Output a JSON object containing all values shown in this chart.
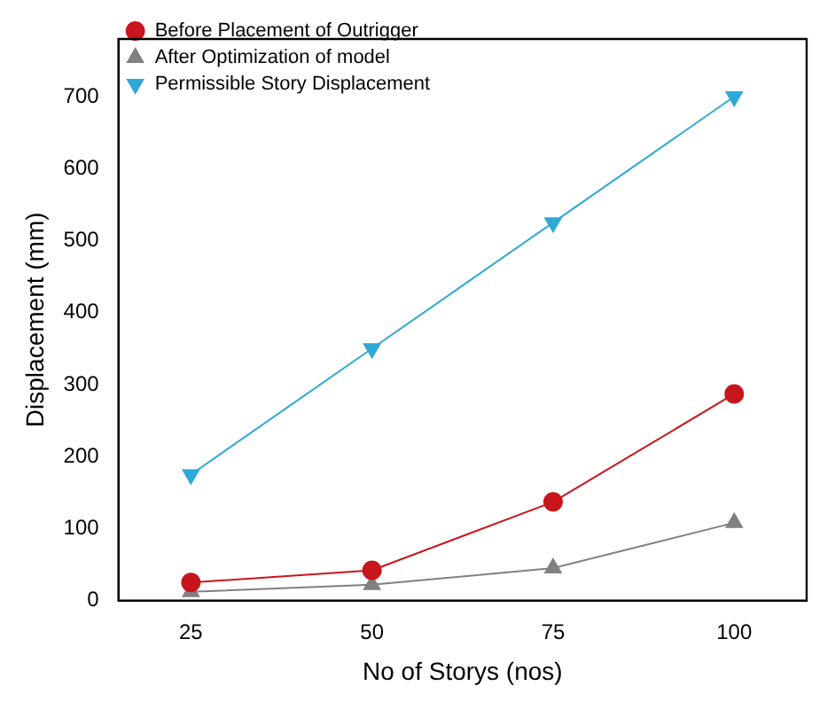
{
  "chart_data": {
    "type": "line",
    "xlabel": "No of Storys (nos)",
    "ylabel": "Displacement (mm)",
    "x": [
      25,
      50,
      75,
      100
    ],
    "series": [
      {
        "name": "Before Placement of Outrigger",
        "color": "#c8161d",
        "marker": "circle",
        "values": [
          25,
          42,
          137,
          287
        ]
      },
      {
        "name": "After Optimization of model",
        "color": "#808080",
        "marker": "triangle",
        "values": [
          12,
          22,
          45,
          108
        ]
      },
      {
        "name": "Permissible Story Displacement",
        "color": "#2ea8d6",
        "marker": "triangle-down",
        "values": [
          175,
          350,
          525,
          700
        ]
      }
    ],
    "xlim": [
      15,
      110
    ],
    "xticks": [
      25,
      50,
      75,
      100
    ],
    "ylim": [
      0,
      780
    ],
    "yticks": [
      0,
      100,
      200,
      300,
      400,
      500,
      600,
      700
    ],
    "grid": false,
    "legend": "top left"
  }
}
